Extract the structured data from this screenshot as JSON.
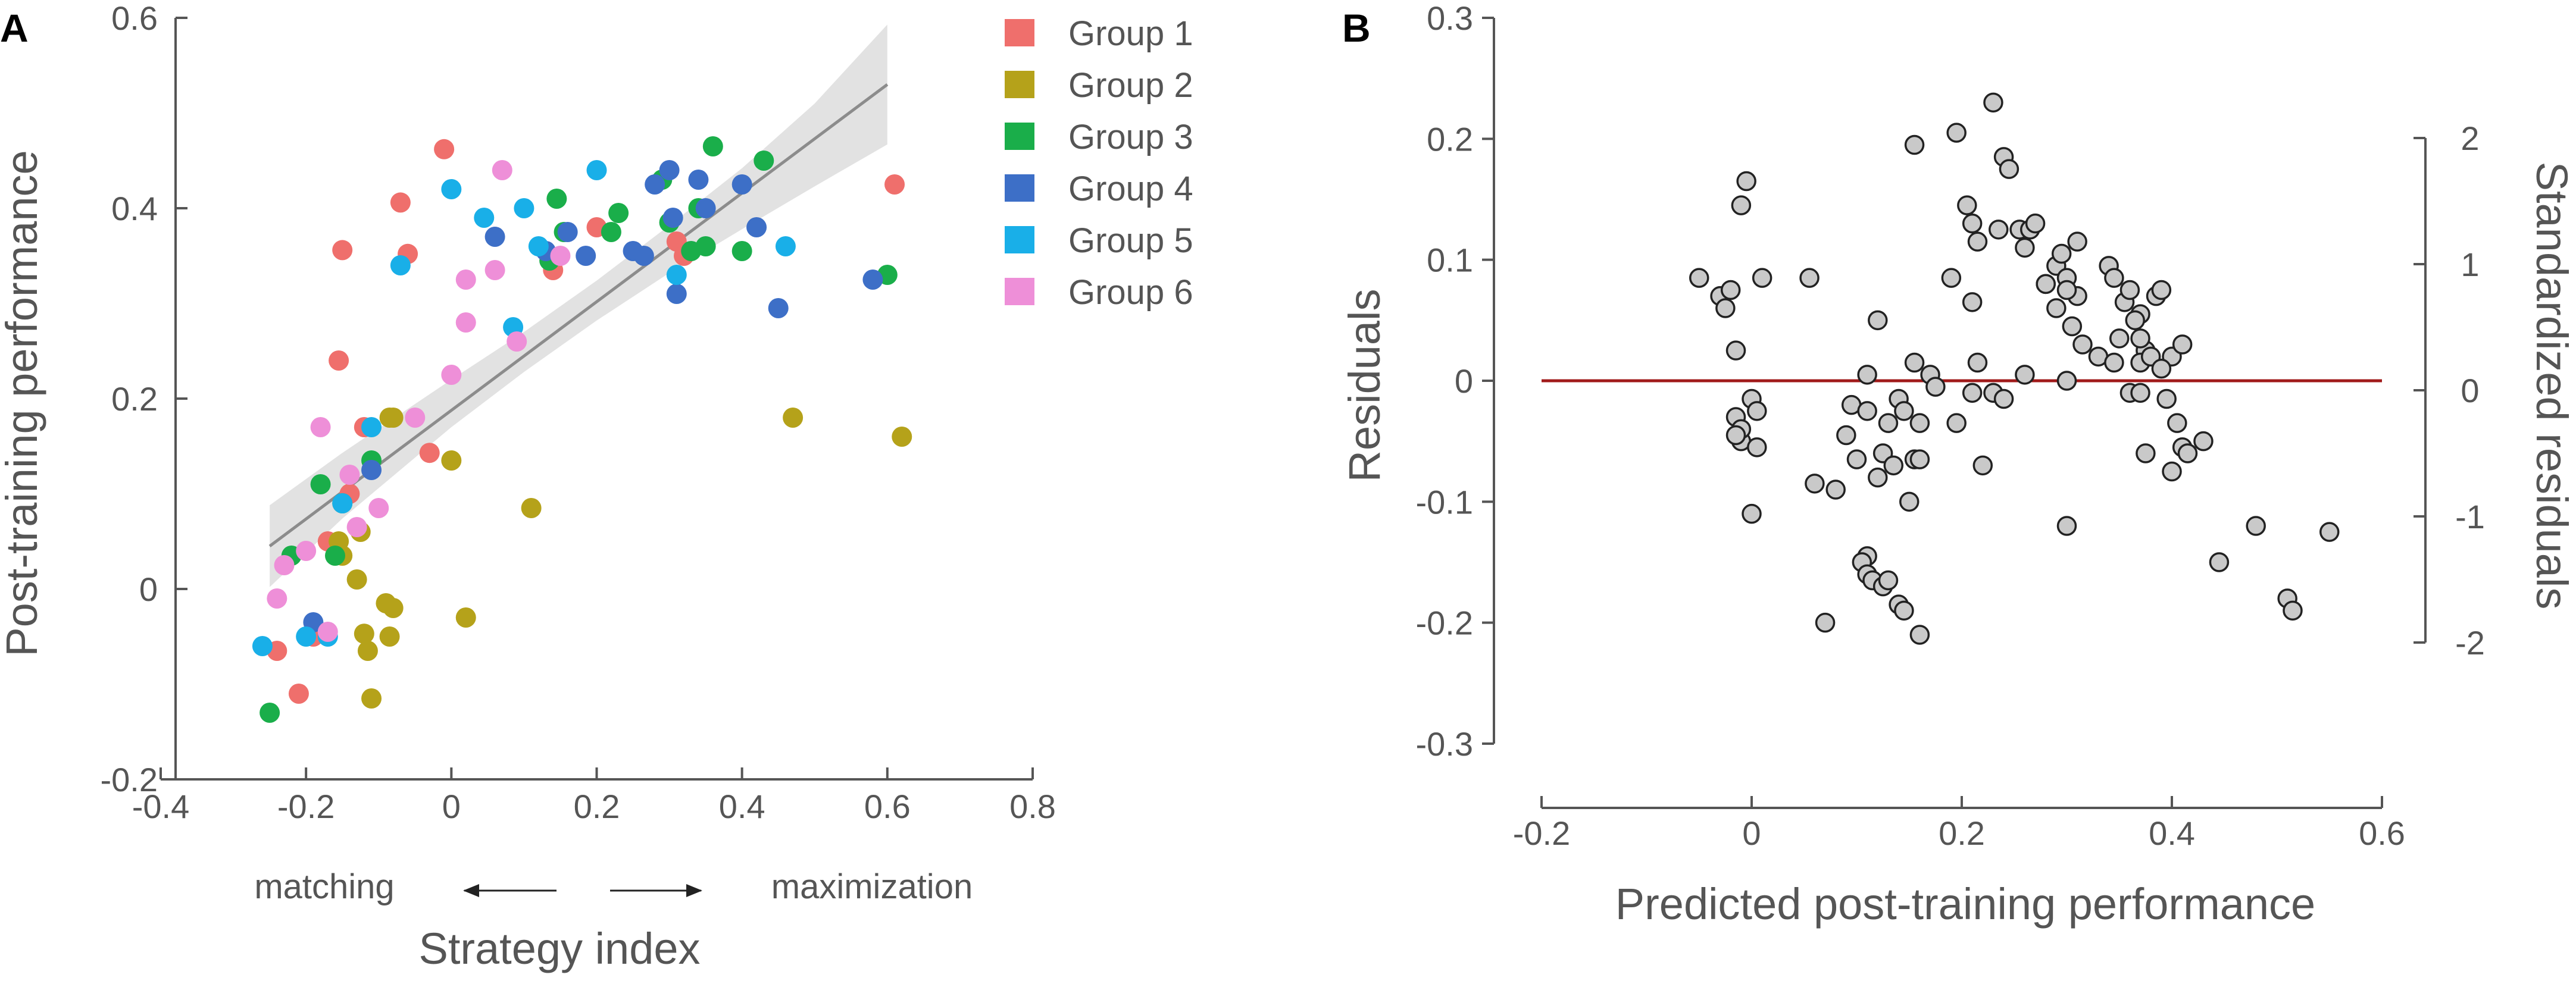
{
  "chart_data": [
    {
      "panel": "A",
      "type": "scatter",
      "xlabel": "Strategy index",
      "ylabel": "Post-training performance",
      "xlim": [
        -0.4,
        0.8
      ],
      "ylim": [
        -0.2,
        0.6
      ],
      "xticks": [
        "-0.4",
        "-0.2",
        "0",
        "0.2",
        "0.4",
        "0.6",
        "0.8"
      ],
      "yticks": [
        "-0.2",
        "0",
        "0.2",
        "0.4",
        "0.6"
      ],
      "annotation_left": "matching",
      "annotation_right": "maximization",
      "legend_position": "top-right",
      "fit_line": {
        "x": [
          -0.25,
          0.6
        ],
        "y": [
          0.045,
          0.53
        ]
      },
      "confidence_band": {
        "x": [
          -0.25,
          -0.15,
          0.0,
          0.1,
          0.2,
          0.3,
          0.4,
          0.5,
          0.6
        ],
        "lower": [
          0.002,
          0.074,
          0.17,
          0.228,
          0.282,
          0.332,
          0.378,
          0.423,
          0.467
        ],
        "upper": [
          0.088,
          0.143,
          0.22,
          0.27,
          0.324,
          0.382,
          0.442,
          0.51,
          0.593
        ]
      },
      "series": [
        {
          "name": "Group 1",
          "color": "#EF6F6C",
          "x": [
            -0.24,
            -0.21,
            -0.19,
            -0.17,
            -0.155,
            -0.15,
            -0.14,
            -0.12,
            -0.07,
            -0.06,
            -0.03,
            -0.01,
            0.14,
            0.2,
            0.31,
            0.32,
            0.61
          ],
          "y": [
            -0.065,
            -0.11,
            -0.05,
            0.05,
            0.24,
            0.356,
            0.1,
            0.17,
            0.406,
            0.352,
            0.143,
            0.462,
            0.335,
            0.38,
            0.365,
            0.35,
            0.425
          ]
        },
        {
          "name": "Group 2",
          "color": "#B5A21A",
          "x": [
            -0.155,
            -0.15,
            -0.13,
            -0.125,
            -0.12,
            -0.115,
            -0.11,
            -0.09,
            -0.085,
            -0.08,
            -0.085,
            -0.08,
            0.0,
            0.02,
            0.11,
            0.47,
            0.62
          ],
          "y": [
            0.05,
            0.035,
            0.01,
            0.06,
            -0.047,
            -0.065,
            -0.115,
            -0.015,
            -0.05,
            -0.02,
            0.18,
            0.18,
            0.135,
            -0.03,
            0.085,
            0.18,
            0.16
          ]
        },
        {
          "name": "Group 3",
          "color": "#1AAE4A",
          "x": [
            -0.25,
            -0.22,
            -0.18,
            -0.16,
            -0.15,
            -0.11,
            0.135,
            0.145,
            0.155,
            0.22,
            0.23,
            0.29,
            0.3,
            0.33,
            0.34,
            0.35,
            0.36,
            0.4,
            0.43,
            0.6
          ],
          "y": [
            -0.13,
            0.035,
            0.11,
            0.035,
            0.09,
            0.135,
            0.345,
            0.41,
            0.375,
            0.375,
            0.395,
            0.43,
            0.385,
            0.355,
            0.4,
            0.36,
            0.465,
            0.355,
            0.45,
            0.33
          ]
        },
        {
          "name": "Group 4",
          "color": "#3D6FC7",
          "x": [
            -0.19,
            -0.11,
            0.06,
            0.13,
            0.16,
            0.185,
            0.25,
            0.265,
            0.28,
            0.3,
            0.305,
            0.31,
            0.34,
            0.35,
            0.4,
            0.42,
            0.45,
            0.58
          ],
          "y": [
            -0.035,
            0.125,
            0.37,
            0.355,
            0.375,
            0.35,
            0.355,
            0.35,
            0.425,
            0.44,
            0.39,
            0.31,
            0.43,
            0.4,
            0.425,
            0.38,
            0.295,
            0.325
          ]
        },
        {
          "name": "Group 5",
          "color": "#19AFE8",
          "x": [
            -0.26,
            -0.2,
            -0.17,
            -0.15,
            -0.11,
            -0.07,
            0.0,
            0.045,
            0.085,
            0.1,
            0.12,
            0.2,
            0.31,
            0.46
          ],
          "y": [
            -0.06,
            -0.05,
            -0.05,
            0.09,
            0.17,
            0.34,
            0.42,
            0.39,
            0.275,
            0.4,
            0.36,
            0.44,
            0.33,
            0.36
          ]
        },
        {
          "name": "Group 6",
          "color": "#EE8FD8",
          "x": [
            -0.24,
            -0.23,
            -0.2,
            -0.18,
            -0.17,
            -0.14,
            -0.13,
            -0.1,
            -0.05,
            0.0,
            0.02,
            0.02,
            0.06,
            0.07,
            0.09,
            0.15
          ],
          "y": [
            -0.01,
            0.025,
            0.04,
            0.17,
            -0.045,
            0.12,
            0.065,
            0.085,
            0.18,
            0.225,
            0.325,
            0.28,
            0.335,
            0.44,
            0.26,
            0.35
          ]
        }
      ]
    },
    {
      "panel": "B",
      "type": "scatter",
      "xlabel": "Predicted post-training performance",
      "ylabel": "Residuals",
      "y2label": "Standardized residuals",
      "xlim": [
        -0.2,
        0.6
      ],
      "ylim": [
        -0.3,
        0.3
      ],
      "xticks": [
        "-0.2",
        "0",
        "0.2",
        "0.4",
        "0.6"
      ],
      "yticks": [
        "-0.3",
        "-0.2",
        "-0.1",
        "0",
        "0.1",
        "0.2",
        "0.3"
      ],
      "y2lim": [
        -2,
        2
      ],
      "y2ticks": [
        "-2",
        "-1",
        "0",
        "1",
        "2"
      ],
      "reference_line": {
        "y": 0,
        "color": "#A01A1A"
      },
      "marker_color": "#C9C9C9",
      "x": [
        -0.05,
        -0.03,
        -0.025,
        -0.02,
        -0.01,
        -0.015,
        -0.005,
        0.01,
        0.055,
        -0.015,
        -0.01,
        0.0,
        0.005,
        -0.01,
        -0.015,
        0.005,
        0.0,
        0.09,
        0.1,
        0.11,
        0.06,
        0.08,
        0.095,
        0.12,
        0.14,
        0.11,
        0.125,
        0.13,
        0.145,
        0.15,
        0.135,
        0.155,
        0.16,
        0.155,
        0.17,
        0.175,
        0.16,
        0.11,
        0.105,
        0.11,
        0.115,
        0.125,
        0.13,
        0.14,
        0.145,
        0.12,
        0.07,
        0.16,
        0.155,
        0.195,
        0.205,
        0.21,
        0.215,
        0.23,
        0.24,
        0.245,
        0.235,
        0.19,
        0.21,
        0.215,
        0.23,
        0.255,
        0.26,
        0.265,
        0.27,
        0.28,
        0.29,
        0.3,
        0.31,
        0.295,
        0.3,
        0.31,
        0.305,
        0.315,
        0.28,
        0.29,
        0.3,
        0.34,
        0.345,
        0.355,
        0.36,
        0.37,
        0.385,
        0.33,
        0.35,
        0.365,
        0.375,
        0.37,
        0.38,
        0.345,
        0.39,
        0.395,
        0.36,
        0.37,
        0.375,
        0.41,
        0.415,
        0.4,
        0.405,
        0.43,
        0.4,
        0.41,
        0.39,
        0.37,
        0.3,
        0.26,
        0.24,
        0.22,
        0.195,
        0.21,
        0.445,
        0.48,
        0.51,
        0.515,
        0.55
      ],
      "y": [
        0.085,
        0.07,
        0.06,
        0.075,
        0.145,
        0.025,
        0.165,
        0.085,
        0.085,
        -0.03,
        -0.05,
        -0.015,
        -0.025,
        -0.04,
        -0.045,
        -0.055,
        -0.11,
        -0.045,
        -0.065,
        0.005,
        -0.085,
        -0.09,
        -0.02,
        0.05,
        -0.015,
        -0.025,
        -0.06,
        -0.035,
        -0.025,
        -0.1,
        -0.07,
        0.015,
        -0.035,
        -0.065,
        0.005,
        -0.005,
        -0.065,
        -0.145,
        -0.15,
        -0.16,
        -0.165,
        -0.17,
        -0.165,
        -0.185,
        -0.19,
        -0.08,
        -0.2,
        -0.21,
        0.195,
        0.205,
        0.145,
        0.13,
        0.115,
        0.23,
        0.185,
        0.175,
        0.125,
        0.085,
        0.065,
        0.015,
        -0.01,
        0.125,
        0.11,
        0.125,
        0.13,
        0.08,
        0.095,
        0.085,
        0.07,
        0.105,
        0.075,
        0.115,
        0.045,
        0.03,
        0.08,
        0.06,
        0.0,
        0.095,
        0.085,
        0.065,
        0.075,
        0.055,
        0.07,
        0.02,
        0.035,
        0.05,
        0.025,
        0.015,
        0.02,
        0.015,
        0.075,
        -0.015,
        -0.01,
        -0.01,
        -0.06,
        -0.055,
        -0.06,
        0.02,
        -0.035,
        -0.05,
        -0.075,
        0.03,
        0.01,
        0.035,
        -0.12,
        0.005,
        -0.015,
        -0.07,
        -0.035,
        -0.01,
        -0.15,
        -0.12,
        -0.18,
        -0.19,
        -0.125
      ]
    }
  ],
  "legend": [
    "Group 1",
    "Group 2",
    "Group 3",
    "Group 4",
    "Group 5",
    "Group 6"
  ],
  "panel_labels": [
    "A",
    "B"
  ]
}
